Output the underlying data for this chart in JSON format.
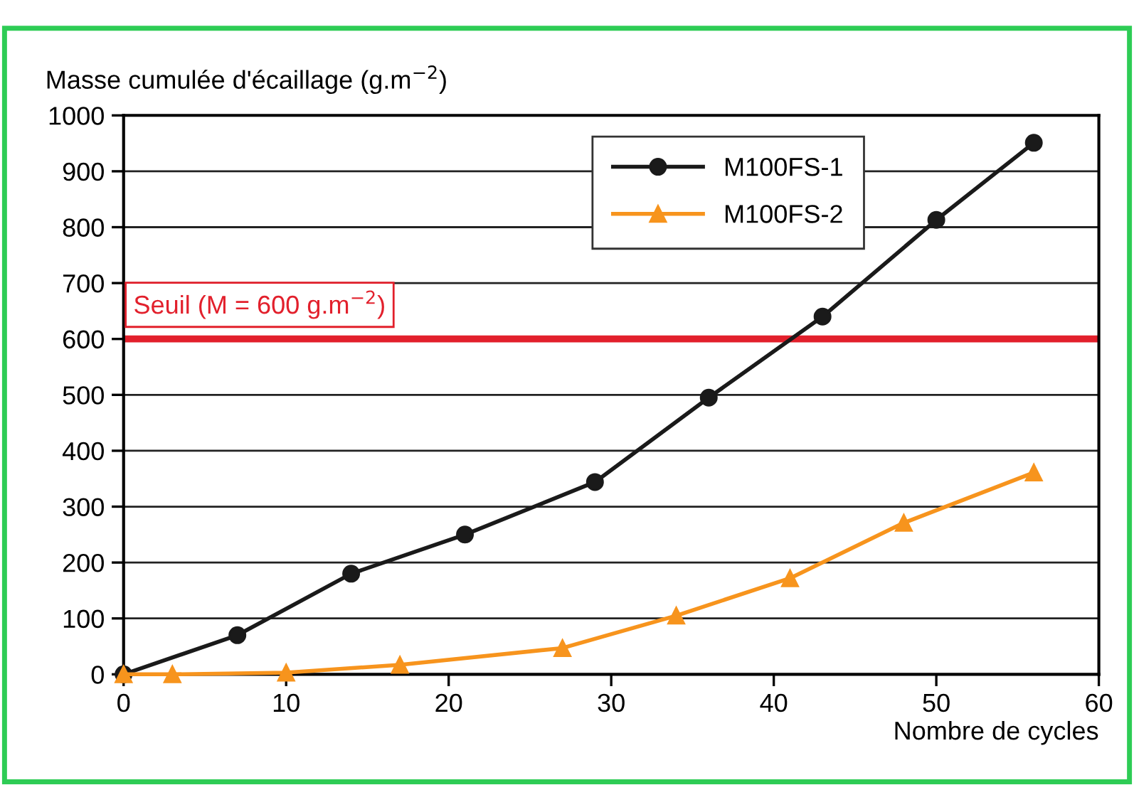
{
  "chart_data": {
    "type": "line",
    "ylabel": "Masse cumulée d'écaillage (g.m$^{−2}$)",
    "xlabel": "Nombre de cycles",
    "xlim": [
      0,
      60
    ],
    "xticks": [
      0,
      10,
      20,
      30,
      40,
      50,
      60
    ],
    "ylim": [
      0,
      1000
    ],
    "yticks": [
      0,
      100,
      200,
      300,
      400,
      500,
      600,
      700,
      800,
      900,
      1000
    ],
    "grid": "y",
    "legend": "top",
    "line_style": "solid",
    "series": [
      {
        "name": "M100FS-1",
        "color": "#1a1a1a",
        "marker": "circle",
        "x": [
          0,
          7,
          14,
          21,
          29,
          36,
          43,
          50,
          56
        ],
        "values": [
          0,
          70,
          180,
          250,
          344,
          495,
          640,
          813,
          951
        ]
      },
      {
        "name": "M100FS-2",
        "color": "#f7941d",
        "marker": "triangle",
        "x": [
          0,
          3,
          10,
          17,
          27,
          34,
          41,
          48,
          56
        ],
        "values": [
          0,
          0,
          3,
          17,
          47,
          105,
          172,
          271,
          361
        ]
      }
    ],
    "ref_lines": [
      {
        "axis": "y",
        "value": 600,
        "label": "Seuil (M = 600 g.m$^{−2}$)",
        "color": "#e2202c",
        "line_style": "solid"
      }
    ]
  }
}
